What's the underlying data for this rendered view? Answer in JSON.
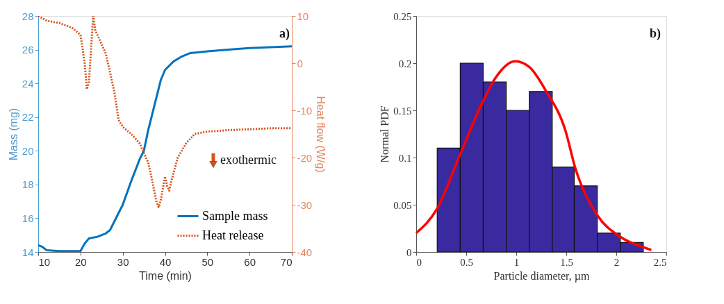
{
  "chart_data": [
    {
      "type": "line",
      "xlabel": "Time (min)",
      "ylabel": "Mass (mg)",
      "y2label": "Heat flow (W/g)",
      "xlim": [
        10,
        70
      ],
      "xticks": [
        10,
        20,
        30,
        40,
        50,
        60,
        70
      ],
      "ylim": [
        14,
        28
      ],
      "yticks": [
        14,
        16,
        18,
        20,
        22,
        24,
        26,
        28
      ],
      "y2lim": [
        -40,
        10
      ],
      "y2ticks": [
        -40,
        -30,
        -20,
        -10,
        0,
        10
      ],
      "grid": false,
      "legend": "bottom right",
      "annotations": [
        "a)",
        "exothermic"
      ],
      "series": [
        {
          "name": "Sample mass",
          "color": "#0072bd",
          "line_style": "solid",
          "x": [
            10,
            11,
            12,
            15,
            20,
            21,
            22,
            24,
            26,
            27,
            28,
            30,
            32,
            34,
            35,
            36,
            38,
            39,
            40,
            42,
            44,
            46,
            50,
            55,
            60,
            65,
            70
          ],
          "values": [
            14.4,
            14.3,
            14.1,
            14.05,
            14.05,
            14.5,
            14.8,
            14.9,
            15.1,
            15.3,
            15.8,
            16.8,
            18.2,
            19.5,
            20.0,
            21.2,
            23.2,
            24.2,
            24.8,
            25.3,
            25.6,
            25.8,
            25.9,
            26.0,
            26.1,
            26.15,
            26.2
          ]
        },
        {
          "name": "Heat release",
          "color": "#d95319",
          "line_style": "dotted",
          "axis": "y2",
          "x": [
            10,
            12,
            15,
            18,
            20,
            21,
            21.5,
            22,
            22.5,
            23,
            23.5,
            25,
            26,
            27,
            28,
            29,
            30,
            32,
            34,
            35,
            36,
            37,
            38,
            38.5,
            39,
            40,
            40.5,
            41,
            41.5,
            43,
            45,
            47,
            50,
            55,
            60,
            65,
            70
          ],
          "values": [
            10,
            9,
            8.5,
            7.5,
            6,
            0,
            -5.5,
            -4,
            3,
            10,
            7,
            4,
            2,
            -2,
            -6,
            -12,
            -13.5,
            -15,
            -17,
            -19,
            -21,
            -25,
            -29.5,
            -30.5,
            -29,
            -24,
            -26,
            -27,
            -25,
            -20,
            -17,
            -15,
            -14.5,
            -14.2,
            -14,
            -13.8,
            -13.8
          ]
        }
      ]
    },
    {
      "type": "histogram",
      "xlabel": "Particle diameter, µm",
      "ylabel": "Normal PDF",
      "xlim": [
        0,
        2.5
      ],
      "xticks": [
        0,
        0.5,
        1,
        1.5,
        2,
        2.5
      ],
      "ylim": [
        0,
        0.25
      ],
      "yticks": [
        0,
        0.05,
        0.1,
        0.15,
        0.2,
        0.25
      ],
      "grid": false,
      "annotations": [
        "b)"
      ],
      "color": "#3a2aa0",
      "bins": [
        0.21,
        0.44,
        0.67,
        0.9,
        1.13,
        1.36,
        1.58,
        1.81,
        2.04,
        2.27
      ],
      "values": [
        0.11,
        0.2,
        0.18,
        0.15,
        0.17,
        0.09,
        0.07,
        0.02,
        0.01
      ],
      "series": [
        {
          "type": "line",
          "color": "#ff0000",
          "x": [
            0,
            0.21,
            0.43,
            0.66,
            0.79,
            0.99,
            1.13,
            1.3,
            1.49,
            1.59,
            1.81,
            2.04,
            2.27,
            2.35
          ],
          "values": [
            0.02,
            0.046,
            0.101,
            0.158,
            0.184,
            0.202,
            0.196,
            0.17,
            0.129,
            0.089,
            0.039,
            0.016,
            0.005,
            0.002
          ]
        }
      ]
    }
  ]
}
